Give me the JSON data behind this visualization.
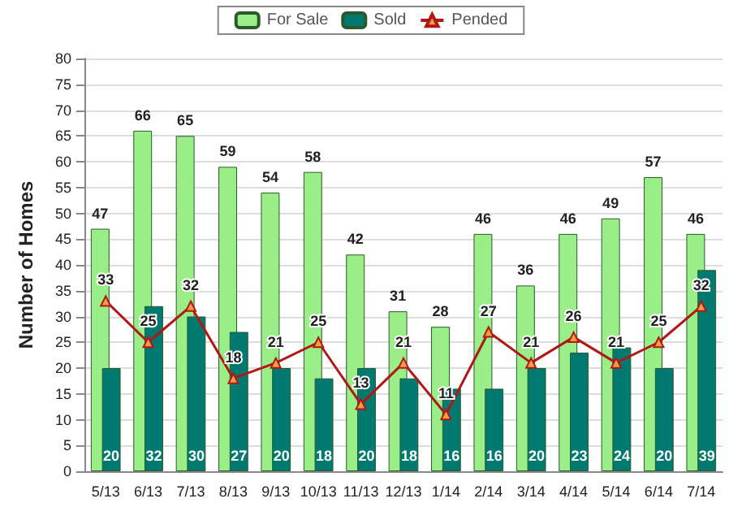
{
  "chart_data": {
    "type": "bar",
    "ylabel": "Number of Homes",
    "categories": [
      "5/13",
      "6/13",
      "7/13",
      "8/13",
      "9/13",
      "10/13",
      "11/13",
      "12/13",
      "1/14",
      "2/14",
      "3/14",
      "4/14",
      "5/14",
      "6/14",
      "7/14"
    ],
    "series": [
      {
        "name": "For Sale",
        "color": "#99ee88",
        "values": [
          47,
          66,
          65,
          59,
          54,
          58,
          42,
          31,
          28,
          46,
          36,
          46,
          49,
          57,
          46
        ]
      },
      {
        "name": "Sold",
        "color": "#007a70",
        "values": [
          20,
          32,
          30,
          27,
          20,
          18,
          20,
          18,
          16,
          16,
          20,
          23,
          24,
          20,
          39
        ]
      },
      {
        "name": "Pended",
        "type": "line",
        "color": "#b01818",
        "values": [
          33,
          25,
          32,
          18,
          21,
          25,
          13,
          21,
          11,
          27,
          21,
          26,
          21,
          25,
          32
        ]
      }
    ],
    "ylim": [
      0,
      80
    ],
    "yticks": [
      0,
      5,
      10,
      15,
      20,
      25,
      30,
      35,
      40,
      45,
      50,
      55,
      60,
      65,
      70,
      75,
      80
    ],
    "grid": "y",
    "legend": "top",
    "marker": "triangle",
    "data_labels": true
  }
}
